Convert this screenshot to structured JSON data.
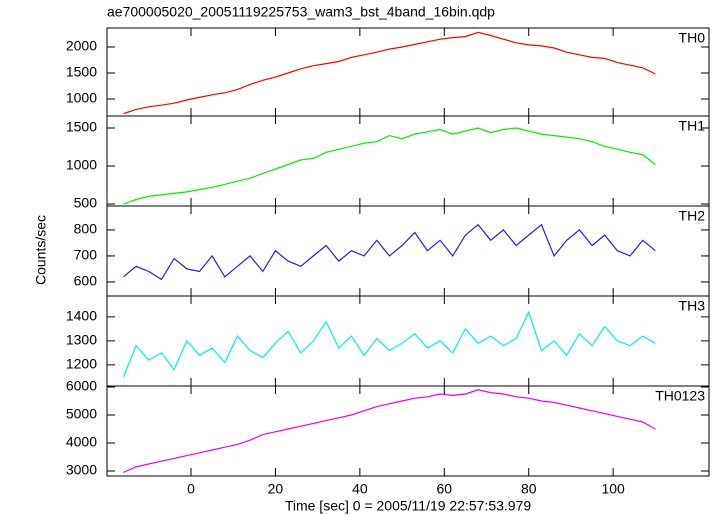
{
  "title": "ae700005020_20051119225753_wam3_bst_4band_16bin.qdp",
  "xlabel": "Time [sec] 0 = 2005/11/19 22:57:53.979",
  "ylabel": "Counts/sec",
  "chart_data": [
    {
      "type": "line",
      "label": "TH0",
      "color": "#ff0000",
      "x": [
        -16,
        -13,
        -10,
        -7,
        -4,
        -1,
        2,
        5,
        8,
        11,
        14,
        17,
        20,
        23,
        26,
        29,
        32,
        35,
        38,
        41,
        44,
        47,
        50,
        53,
        56,
        59,
        62,
        65,
        68,
        71,
        74,
        77,
        80,
        83,
        86,
        89,
        92,
        95,
        98,
        101,
        104,
        107,
        110
      ],
      "values": [
        720,
        800,
        850,
        880,
        920,
        980,
        1030,
        1080,
        1120,
        1180,
        1280,
        1360,
        1420,
        1500,
        1580,
        1640,
        1680,
        1720,
        1800,
        1850,
        1900,
        1960,
        2000,
        2050,
        2100,
        2150,
        2180,
        2200,
        2280,
        2220,
        2150,
        2080,
        2040,
        2020,
        1980,
        1900,
        1850,
        1800,
        1780,
        1700,
        1650,
        1600,
        1480
      ],
      "ylim": [
        673,
        2365
      ],
      "yticks": [
        1000,
        1500,
        2000
      ]
    },
    {
      "type": "line",
      "label": "TH1",
      "color": "#00ee00",
      "x": [
        -16,
        -13,
        -10,
        -7,
        -4,
        -1,
        2,
        5,
        8,
        11,
        14,
        17,
        20,
        23,
        26,
        29,
        32,
        35,
        38,
        41,
        44,
        47,
        50,
        53,
        56,
        59,
        62,
        65,
        68,
        71,
        74,
        77,
        80,
        83,
        86,
        89,
        92,
        95,
        98,
        101,
        104,
        107,
        110
      ],
      "values": [
        500,
        560,
        600,
        620,
        640,
        660,
        690,
        720,
        760,
        800,
        840,
        900,
        960,
        1020,
        1080,
        1100,
        1180,
        1220,
        1260,
        1300,
        1320,
        1400,
        1360,
        1420,
        1450,
        1480,
        1420,
        1460,
        1500,
        1440,
        1480,
        1500,
        1460,
        1420,
        1400,
        1380,
        1360,
        1320,
        1260,
        1220,
        1180,
        1150,
        1020
      ],
      "ylim": [
        474,
        1658
      ],
      "yticks": [
        500,
        1000,
        1500
      ]
    },
    {
      "type": "line",
      "label": "TH2",
      "color": "#2222dd",
      "x": [
        -16,
        -13,
        -10,
        -7,
        -4,
        -1,
        2,
        5,
        8,
        11,
        14,
        17,
        20,
        23,
        26,
        29,
        32,
        35,
        38,
        41,
        44,
        47,
        50,
        53,
        56,
        59,
        62,
        65,
        68,
        71,
        74,
        77,
        80,
        83,
        86,
        89,
        92,
        95,
        98,
        101,
        104,
        107,
        110
      ],
      "values": [
        620,
        660,
        640,
        610,
        690,
        650,
        640,
        700,
        620,
        660,
        700,
        640,
        720,
        680,
        660,
        700,
        740,
        680,
        720,
        700,
        760,
        700,
        740,
        790,
        720,
        760,
        700,
        780,
        820,
        760,
        800,
        740,
        780,
        820,
        700,
        760,
        800,
        740,
        780,
        720,
        700,
        760,
        720
      ],
      "ylim": [
        546,
        892
      ],
      "yticks": [
        600,
        700,
        800
      ]
    },
    {
      "type": "line",
      "label": "TH3",
      "color": "#00eeee",
      "x": [
        -16,
        -13,
        -10,
        -7,
        -4,
        -1,
        2,
        5,
        8,
        11,
        14,
        17,
        20,
        23,
        26,
        29,
        32,
        35,
        38,
        41,
        44,
        47,
        50,
        53,
        56,
        59,
        62,
        65,
        68,
        71,
        74,
        77,
        80,
        83,
        86,
        89,
        92,
        95,
        98,
        101,
        104,
        107,
        110
      ],
      "values": [
        1150,
        1280,
        1220,
        1250,
        1180,
        1300,
        1240,
        1270,
        1210,
        1320,
        1260,
        1230,
        1290,
        1340,
        1250,
        1300,
        1380,
        1270,
        1320,
        1240,
        1310,
        1260,
        1290,
        1330,
        1270,
        1300,
        1250,
        1350,
        1290,
        1320,
        1280,
        1310,
        1420,
        1260,
        1300,
        1240,
        1330,
        1280,
        1360,
        1300,
        1280,
        1320,
        1290
      ],
      "ylim": [
        1112,
        1487
      ],
      "yticks": [
        1200,
        1300,
        1400
      ]
    },
    {
      "type": "line",
      "label": "TH0123",
      "color": "#ee00ee",
      "x": [
        -16,
        -13,
        -10,
        -7,
        -4,
        -1,
        2,
        5,
        8,
        11,
        14,
        17,
        20,
        23,
        26,
        29,
        32,
        35,
        38,
        41,
        44,
        47,
        50,
        53,
        56,
        59,
        62,
        65,
        68,
        71,
        74,
        77,
        80,
        83,
        86,
        89,
        92,
        95,
        98,
        101,
        104,
        107,
        110
      ],
      "values": [
        2950,
        3150,
        3250,
        3350,
        3450,
        3550,
        3650,
        3750,
        3850,
        3950,
        4100,
        4300,
        4400,
        4500,
        4600,
        4700,
        4800,
        4900,
        5000,
        5150,
        5300,
        5400,
        5500,
        5600,
        5650,
        5750,
        5700,
        5750,
        5900,
        5800,
        5750,
        5650,
        5600,
        5500,
        5450,
        5350,
        5250,
        5150,
        5050,
        4950,
        4850,
        4750,
        4500
      ],
      "ylim": [
        2821,
        6036
      ],
      "yticks": [
        3000,
        4000,
        5000,
        6000
      ],
      "xlim": [
        -19.9,
        122.7
      ],
      "xticks": [
        0,
        20,
        40,
        60,
        80,
        100
      ]
    }
  ]
}
